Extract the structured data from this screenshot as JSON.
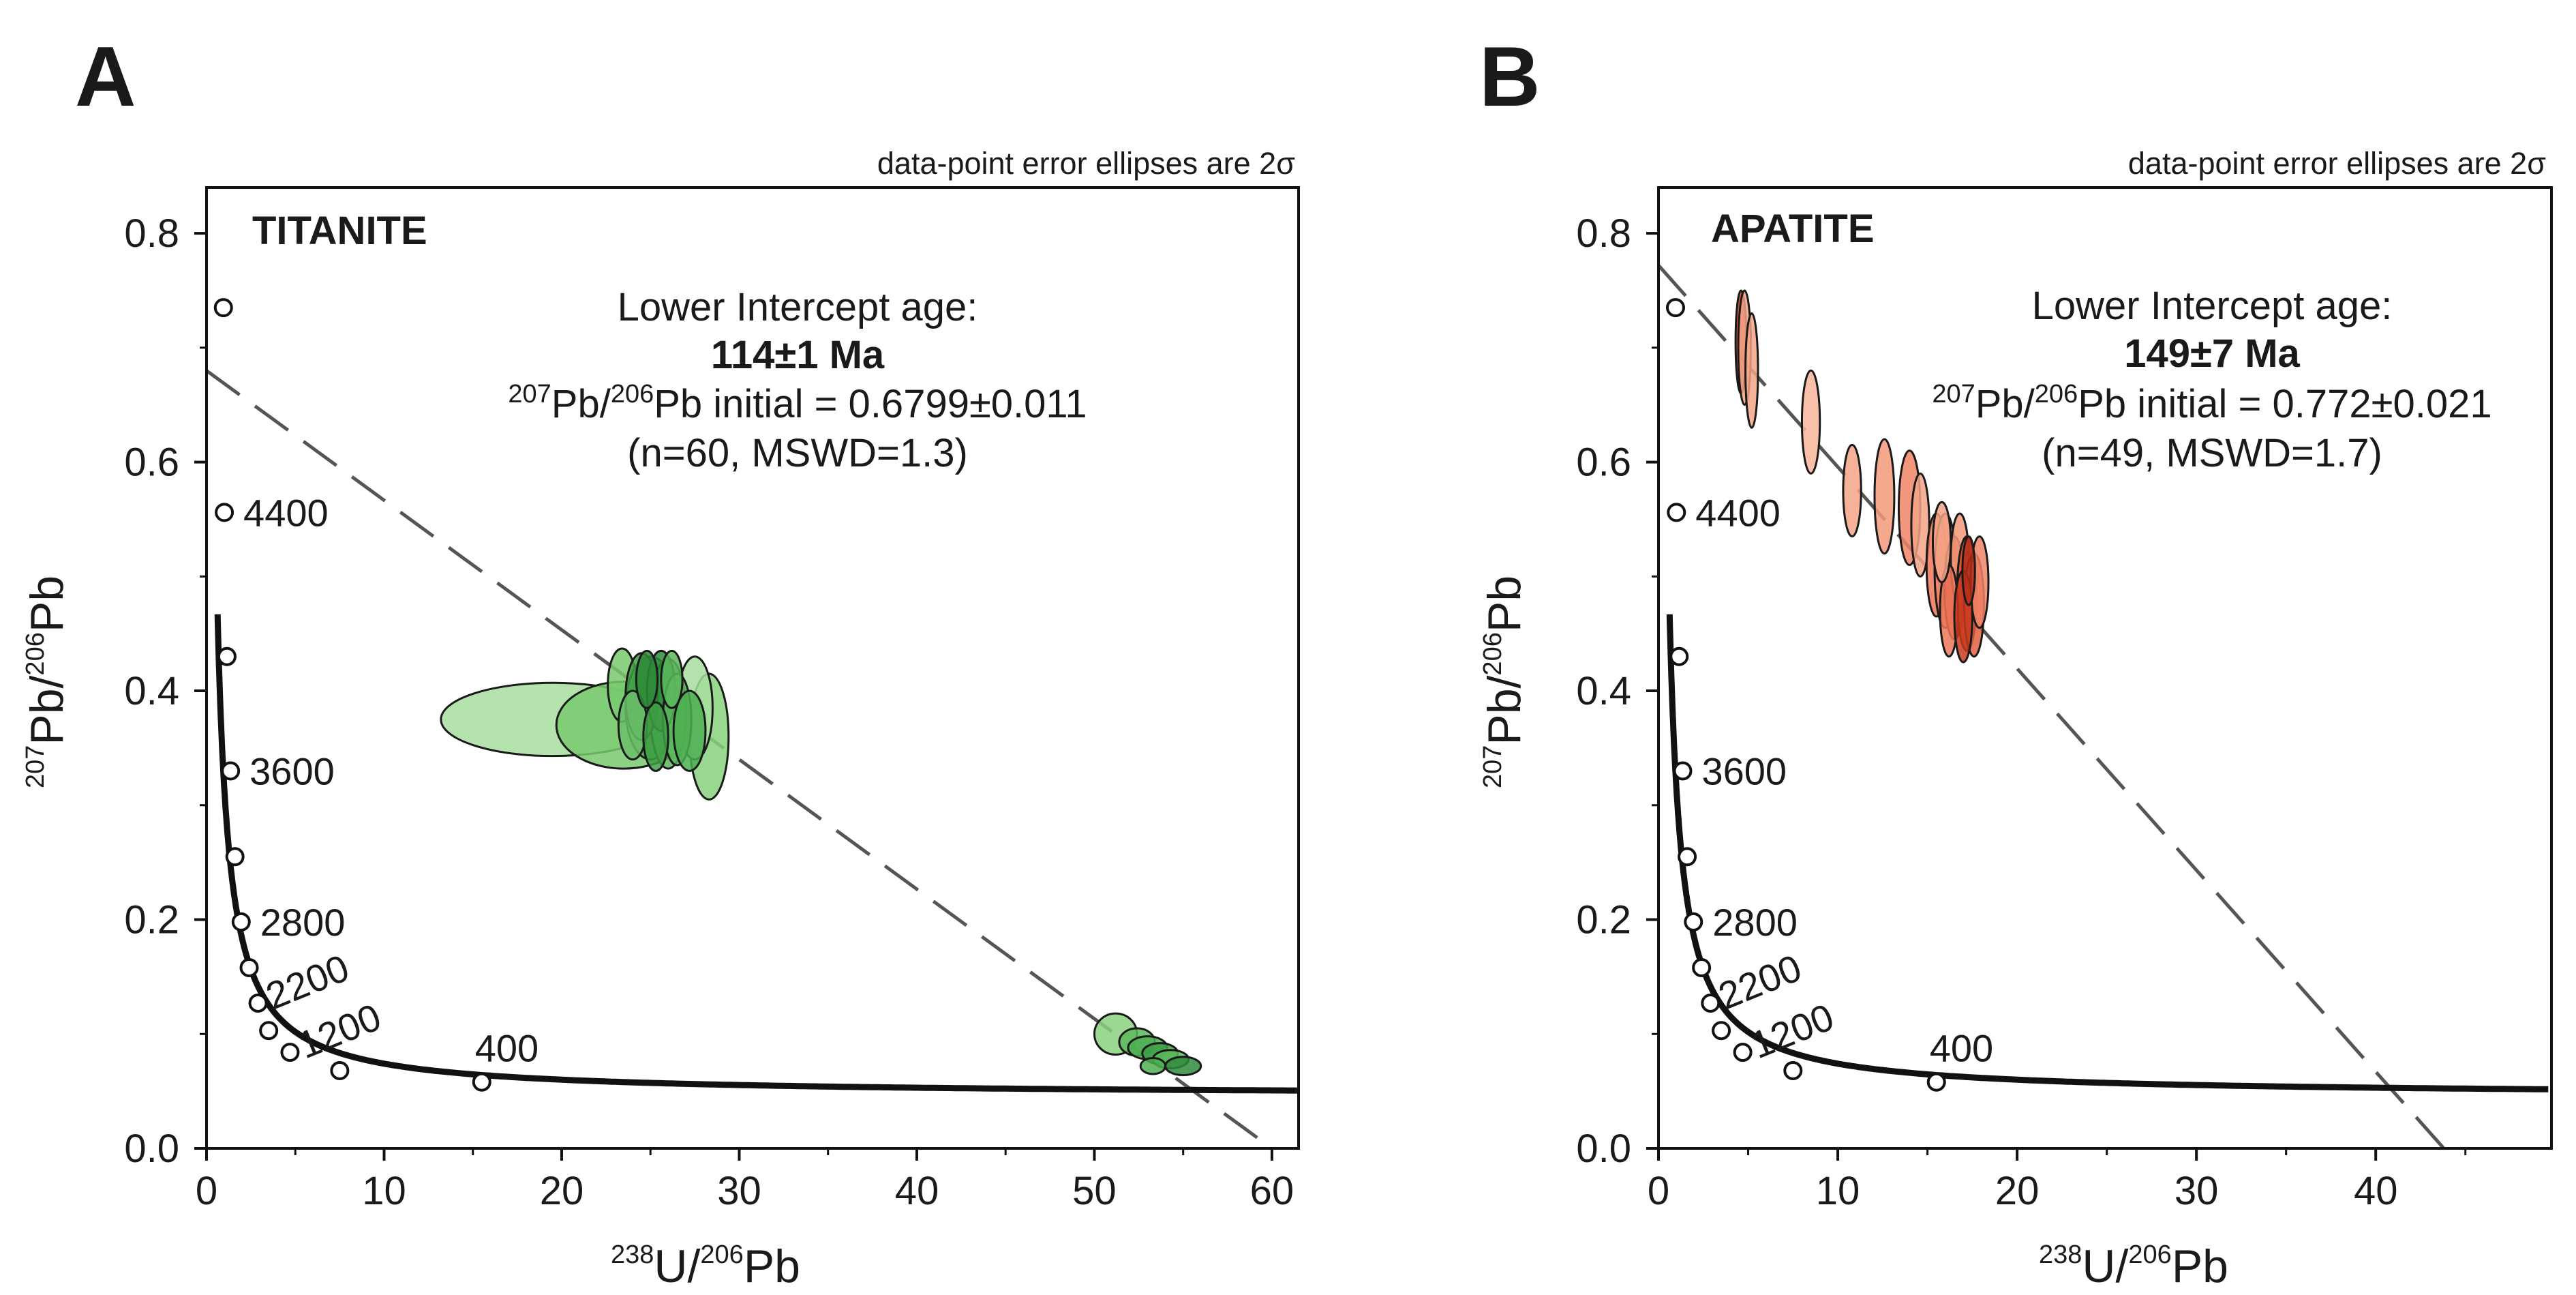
{
  "colors": {
    "titanite_fill": "#5cbf5c",
    "titanite_dark": "#2f8f3a",
    "apatite_fill": "#f08466",
    "apatite_dark": "#c9391f",
    "concordia": "#111111",
    "regression": "#555555"
  },
  "chart_data": [
    {
      "type": "scatter",
      "panel_label": "A",
      "mineral": "TITANITE",
      "note": "data-point error ellipses are 2σ",
      "xlabel": {
        "mass_u": "238",
        "el_u": "U/",
        "mass_pb": "206",
        "el_pb": "Pb"
      },
      "ylabel": {
        "mass1": "207",
        "el1": "Pb/",
        "mass2": "206",
        "el2": "Pb"
      },
      "xlim": [
        0,
        61.5
      ],
      "ylim": [
        0,
        0.84
      ],
      "xticks": [
        "0",
        "10",
        "20",
        "30",
        "40",
        "50",
        "60"
      ],
      "xtick_values": [
        0,
        10,
        20,
        30,
        40,
        50,
        60
      ],
      "yticks": [
        "0.0",
        "0.2",
        "0.4",
        "0.6",
        "0.8"
      ],
      "ytick_values": [
        0,
        0.2,
        0.4,
        0.6,
        0.8
      ],
      "annotation": {
        "line1": "Lower Intercept age:",
        "age": "114±1 Ma",
        "ratio_mass1": "207",
        "ratio_mid": "Pb/",
        "ratio_mass2": "206",
        "ratio_rest": "Pb initial = 0.6799±0.011",
        "stats": "(n=60, MSWD=1.3)"
      },
      "regression": {
        "y_intercept": 0.6799,
        "x_end": 60
      },
      "concordia_markers": [
        {
          "x": 0.95,
          "y": 0.735,
          "label": ""
        },
        {
          "x": 1.0,
          "y": 0.556,
          "label": "4400"
        },
        {
          "x": 1.15,
          "y": 0.43,
          "label": ""
        },
        {
          "x": 1.35,
          "y": 0.33,
          "label": "3600"
        },
        {
          "x": 1.6,
          "y": 0.255,
          "label": ""
        },
        {
          "x": 1.95,
          "y": 0.198,
          "label": "2800"
        },
        {
          "x": 2.4,
          "y": 0.158,
          "label": ""
        },
        {
          "x": 2.9,
          "y": 0.127,
          "label": "2200"
        },
        {
          "x": 3.5,
          "y": 0.103,
          "label": ""
        },
        {
          "x": 4.7,
          "y": 0.084,
          "label": "1200"
        },
        {
          "x": 7.5,
          "y": 0.068,
          "label": ""
        },
        {
          "x": 15.5,
          "y": 0.058,
          "label": "400"
        }
      ],
      "ellipses": [
        {
          "x": 19.5,
          "y": 0.375,
          "rx": 6.3,
          "ry": 0.032,
          "fill": "#a8dea0"
        },
        {
          "x": 23.5,
          "y": 0.37,
          "rx": 3.8,
          "ry": 0.038,
          "fill": "#79c96e"
        },
        {
          "x": 28.3,
          "y": 0.36,
          "rx": 1.1,
          "ry": 0.055,
          "fill": "#8ad27f"
        },
        {
          "x": 27.5,
          "y": 0.385,
          "rx": 1.0,
          "ry": 0.045,
          "fill": "#a8dea0"
        },
        {
          "x": 23.4,
          "y": 0.405,
          "rx": 0.8,
          "ry": 0.032,
          "fill": "#79c96e"
        },
        {
          "x": 25.0,
          "y": 0.385,
          "rx": 1.4,
          "ry": 0.045,
          "fill": "#4caf50"
        },
        {
          "x": 26.0,
          "y": 0.38,
          "rx": 1.0,
          "ry": 0.048,
          "fill": "#5cb85c"
        },
        {
          "x": 24.5,
          "y": 0.395,
          "rx": 0.9,
          "ry": 0.038,
          "fill": "#3e9f45"
        },
        {
          "x": 25.6,
          "y": 0.4,
          "rx": 0.8,
          "ry": 0.035,
          "fill": "#2e8b3a"
        },
        {
          "x": 26.5,
          "y": 0.375,
          "rx": 0.8,
          "ry": 0.04,
          "fill": "#5cb85c"
        },
        {
          "x": 27.2,
          "y": 0.365,
          "rx": 0.9,
          "ry": 0.035,
          "fill": "#4caf50"
        },
        {
          "x": 24.0,
          "y": 0.37,
          "rx": 0.8,
          "ry": 0.03,
          "fill": "#6cc06a"
        },
        {
          "x": 25.3,
          "y": 0.36,
          "rx": 0.7,
          "ry": 0.03,
          "fill": "#3e9f45"
        },
        {
          "x": 24.8,
          "y": 0.41,
          "rx": 0.6,
          "ry": 0.025,
          "fill": "#2e8b3a"
        },
        {
          "x": 26.2,
          "y": 0.41,
          "rx": 0.6,
          "ry": 0.025,
          "fill": "#5cb85c"
        },
        {
          "x": 51.2,
          "y": 0.1,
          "rx": 1.2,
          "ry": 0.018,
          "fill": "#8ad27f"
        },
        {
          "x": 52.4,
          "y": 0.093,
          "rx": 1.0,
          "ry": 0.012,
          "fill": "#5cb85c"
        },
        {
          "x": 53.0,
          "y": 0.088,
          "rx": 1.1,
          "ry": 0.01,
          "fill": "#4caf50"
        },
        {
          "x": 53.7,
          "y": 0.083,
          "rx": 1.0,
          "ry": 0.009,
          "fill": "#3e9f45"
        },
        {
          "x": 54.3,
          "y": 0.078,
          "rx": 1.0,
          "ry": 0.008,
          "fill": "#5cb85c"
        },
        {
          "x": 55.0,
          "y": 0.072,
          "rx": 1.0,
          "ry": 0.008,
          "fill": "#2e8b3a"
        },
        {
          "x": 53.3,
          "y": 0.072,
          "rx": 0.7,
          "ry": 0.007,
          "fill": "#4caf50"
        }
      ]
    },
    {
      "type": "scatter",
      "panel_label": "B",
      "mineral": "APATITE",
      "note": "data-point error ellipses are 2σ",
      "xlabel": {
        "mass_u": "238",
        "el_u": "U/",
        "mass_pb": "206",
        "el_pb": "Pb"
      },
      "ylabel": {
        "mass1": "207",
        "el1": "Pb/",
        "mass2": "206",
        "el2": "Pb"
      },
      "xlim": [
        0,
        49.8
      ],
      "ylim": [
        0,
        0.84
      ],
      "xticks": [
        "0",
        "10",
        "20",
        "30",
        "40"
      ],
      "xtick_values": [
        0,
        10,
        20,
        30,
        40
      ],
      "yticks": [
        "0.0",
        "0.2",
        "0.4",
        "0.6",
        "0.8"
      ],
      "ytick_values": [
        0,
        0.2,
        0.4,
        0.6,
        0.8
      ],
      "annotation": {
        "line1": "Lower Intercept age:",
        "age": "149±7 Ma",
        "ratio_mass1": "207",
        "ratio_mid": "Pb/",
        "ratio_mass2": "206",
        "ratio_rest": "Pb initial = 0.772±0.021",
        "stats": "(n=49, MSWD=1.7)"
      },
      "regression": {
        "y_intercept": 0.772,
        "x_end": 43.8
      },
      "concordia_markers": [
        {
          "x": 0.95,
          "y": 0.735,
          "label": ""
        },
        {
          "x": 1.0,
          "y": 0.556,
          "label": "4400"
        },
        {
          "x": 1.15,
          "y": 0.43,
          "label": ""
        },
        {
          "x": 1.35,
          "y": 0.33,
          "label": "3600"
        },
        {
          "x": 1.6,
          "y": 0.255,
          "label": ""
        },
        {
          "x": 1.95,
          "y": 0.198,
          "label": "2800"
        },
        {
          "x": 2.4,
          "y": 0.158,
          "label": ""
        },
        {
          "x": 2.9,
          "y": 0.127,
          "label": "2200"
        },
        {
          "x": 3.5,
          "y": 0.103,
          "label": ""
        },
        {
          "x": 4.7,
          "y": 0.084,
          "label": "1200"
        },
        {
          "x": 7.5,
          "y": 0.068,
          "label": ""
        },
        {
          "x": 15.5,
          "y": 0.058,
          "label": "400"
        }
      ],
      "ellipses": [
        {
          "x": 4.6,
          "y": 0.705,
          "rx": 0.3,
          "ry": 0.045,
          "fill": "#c9391f"
        },
        {
          "x": 4.8,
          "y": 0.7,
          "rx": 0.35,
          "ry": 0.05,
          "fill": "#f4a487"
        },
        {
          "x": 5.2,
          "y": 0.68,
          "rx": 0.35,
          "ry": 0.05,
          "fill": "#f4a487"
        },
        {
          "x": 8.5,
          "y": 0.635,
          "rx": 0.5,
          "ry": 0.045,
          "fill": "#f7b49a"
        },
        {
          "x": 10.8,
          "y": 0.575,
          "rx": 0.5,
          "ry": 0.04,
          "fill": "#f4a487"
        },
        {
          "x": 12.6,
          "y": 0.57,
          "rx": 0.55,
          "ry": 0.05,
          "fill": "#f29979"
        },
        {
          "x": 14.0,
          "y": 0.56,
          "rx": 0.6,
          "ry": 0.05,
          "fill": "#f08466"
        },
        {
          "x": 14.6,
          "y": 0.545,
          "rx": 0.5,
          "ry": 0.045,
          "fill": "#f4a487"
        },
        {
          "x": 15.5,
          "y": 0.51,
          "rx": 0.55,
          "ry": 0.045,
          "fill": "#ed7658"
        },
        {
          "x": 16.0,
          "y": 0.505,
          "rx": 0.6,
          "ry": 0.05,
          "fill": "#f08466"
        },
        {
          "x": 16.5,
          "y": 0.49,
          "rx": 0.55,
          "ry": 0.045,
          "fill": "#e4603f"
        },
        {
          "x": 16.8,
          "y": 0.515,
          "rx": 0.5,
          "ry": 0.04,
          "fill": "#f29979"
        },
        {
          "x": 17.2,
          "y": 0.485,
          "rx": 0.55,
          "ry": 0.05,
          "fill": "#d94a2b"
        },
        {
          "x": 17.6,
          "y": 0.475,
          "rx": 0.55,
          "ry": 0.045,
          "fill": "#e4603f"
        },
        {
          "x": 16.2,
          "y": 0.47,
          "rx": 0.5,
          "ry": 0.04,
          "fill": "#ed7658"
        },
        {
          "x": 17.9,
          "y": 0.495,
          "rx": 0.5,
          "ry": 0.04,
          "fill": "#f08466"
        },
        {
          "x": 17.0,
          "y": 0.465,
          "rx": 0.5,
          "ry": 0.04,
          "fill": "#c9391f"
        },
        {
          "x": 15.8,
          "y": 0.53,
          "rx": 0.5,
          "ry": 0.035,
          "fill": "#f4a487"
        },
        {
          "x": 17.3,
          "y": 0.505,
          "rx": 0.35,
          "ry": 0.03,
          "fill": "#b52d17"
        }
      ]
    }
  ]
}
